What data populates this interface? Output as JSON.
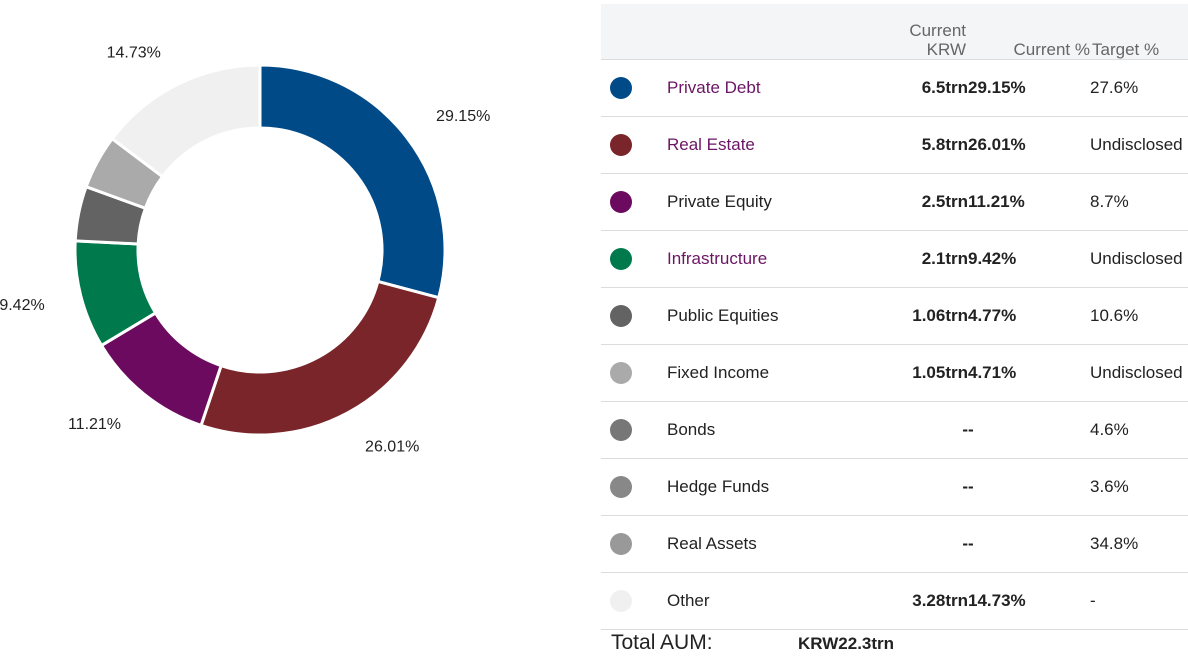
{
  "chart_data": {
    "type": "pie",
    "style": "donut",
    "categories": [
      "Private Debt",
      "Real Estate",
      "Private Equity",
      "Infrastructure",
      "Public Equities",
      "Fixed Income",
      "Other"
    ],
    "values": [
      29.15,
      26.01,
      11.21,
      9.42,
      4.77,
      4.71,
      14.73
    ],
    "colors": [
      "#004b87",
      "#7a252a",
      "#6b0a5e",
      "#007a4d",
      "#636363",
      "#aaaaaa",
      "#f0f0f0"
    ],
    "data_labels": [
      "29.15%",
      "26.01%",
      "11.21%",
      "9.42%",
      "",
      "",
      "14.73%"
    ]
  },
  "table": {
    "headers": {
      "current_krw_line1": "Current",
      "current_krw_line2": "KRW",
      "current_pct": "Current %",
      "target_pct": "Target %"
    },
    "rows": [
      {
        "color": "#004b87",
        "name": "Private Debt",
        "link": true,
        "krw": "6.5trn",
        "current": "29.15%",
        "target": "27.6%"
      },
      {
        "color": "#7a252a",
        "name": "Real Estate",
        "link": true,
        "krw": "5.8trn",
        "current": "26.01%",
        "target": "Undisclosed"
      },
      {
        "color": "#6b0a5e",
        "name": "Private Equity",
        "link": false,
        "krw": "2.5trn",
        "current": "11.21%",
        "target": "8.7%"
      },
      {
        "color": "#007a4d",
        "name": "Infrastructure",
        "link": true,
        "krw": "2.1trn",
        "current": "9.42%",
        "target": "Undisclosed"
      },
      {
        "color": "#636363",
        "name": "Public Equities",
        "link": false,
        "krw": "1.06trn",
        "current": "4.77%",
        "target": "10.6%"
      },
      {
        "color": "#aaaaaa",
        "name": "Fixed Income",
        "link": false,
        "krw": "1.05trn",
        "current": "4.71%",
        "target": "Undisclosed"
      },
      {
        "color": "#777777",
        "name": "Bonds",
        "link": false,
        "krw": "-",
        "current": "-",
        "target": "4.6%"
      },
      {
        "color": "#888888",
        "name": "Hedge Funds",
        "link": false,
        "krw": "-",
        "current": "-",
        "target": "3.6%"
      },
      {
        "color": "#999999",
        "name": "Real Assets",
        "link": false,
        "krw": "-",
        "current": "-",
        "target": "34.8%"
      },
      {
        "color": "#f0f0f0",
        "name": "Other",
        "link": false,
        "krw": "3.28trn",
        "current": "14.73%",
        "target": "-"
      }
    ]
  },
  "total": {
    "label": "Total AUM:",
    "value": "KRW22.3trn"
  }
}
